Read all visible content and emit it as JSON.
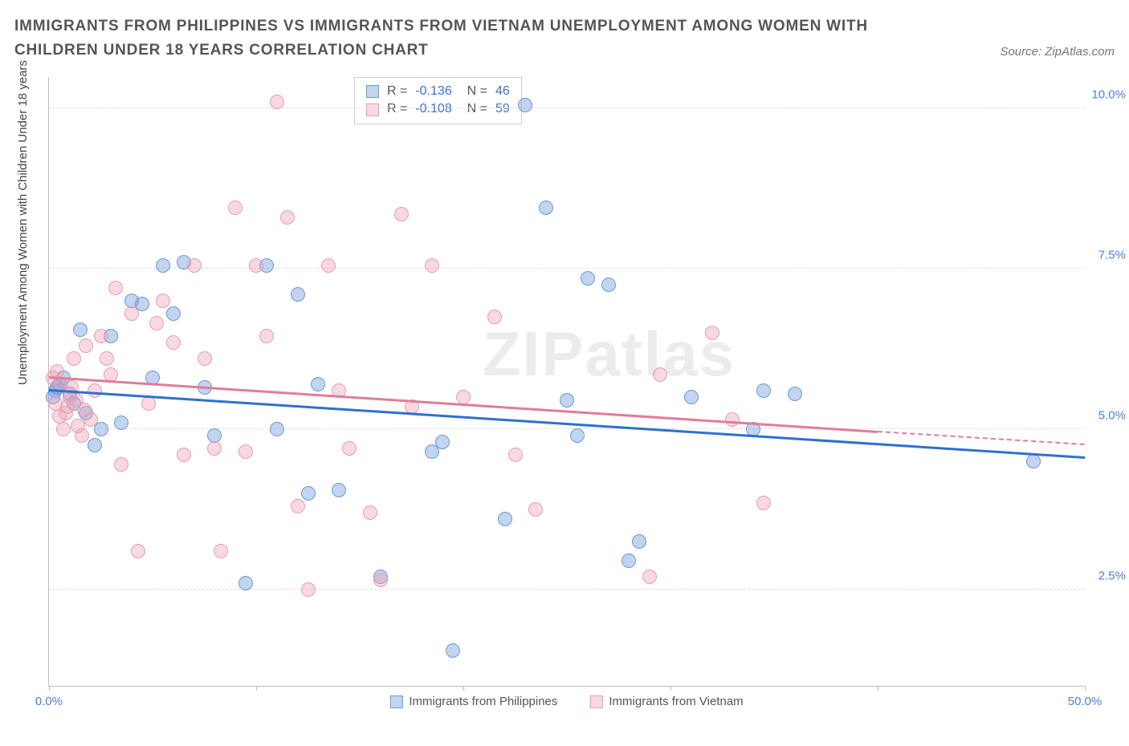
{
  "title": "IMMIGRANTS FROM PHILIPPINES VS IMMIGRANTS FROM VIETNAM UNEMPLOYMENT AMONG WOMEN WITH CHILDREN UNDER 18 YEARS CORRELATION CHART",
  "source_label": "Source: ZipAtlas.com",
  "watermark": "ZIPatlas",
  "ylabel": "Unemployment Among Women with Children Under 18 years",
  "x_range": [
    0,
    50
  ],
  "y_range": [
    1.0,
    10.5
  ],
  "x_ticks": [
    0,
    10,
    20,
    30,
    40,
    50
  ],
  "x_tick_labels": {
    "0": "0.0%",
    "50": "50.0%"
  },
  "y_gridlines": [
    2.5,
    5.0,
    7.5,
    10.0
  ],
  "y_tick_labels": [
    "2.5%",
    "5.0%",
    "7.5%",
    "10.0%"
  ],
  "colors": {
    "blue_fill": "rgba(120,160,220,0.45)",
    "blue_stroke": "#6a9ad6",
    "pink_fill": "rgba(240,160,180,0.40)",
    "pink_stroke": "#e49eb0",
    "blue_line": "#2f6fd0",
    "pink_line": "#e07d98",
    "axis_text": "#4a7fd6",
    "grid": "#dddddd"
  },
  "marker_radius": 9,
  "series": [
    {
      "name": "Immigrants from Philippines",
      "color_key": "blue",
      "R": "-0.136",
      "N": "46",
      "trend": {
        "x1": 0,
        "y1": 5.6,
        "x2": 50,
        "y2": 4.55
      },
      "points": [
        [
          0.3,
          5.6
        ],
        [
          0.5,
          5.7
        ],
        [
          0.7,
          5.8
        ],
        [
          1.0,
          5.55
        ],
        [
          1.2,
          5.4
        ],
        [
          1.5,
          6.55
        ],
        [
          1.8,
          5.25
        ],
        [
          2.2,
          4.75
        ],
        [
          2.5,
          5.0
        ],
        [
          3.0,
          6.45
        ],
        [
          3.5,
          5.1
        ],
        [
          4.0,
          7.0
        ],
        [
          4.5,
          6.95
        ],
        [
          5.0,
          5.8
        ],
        [
          5.5,
          7.55
        ],
        [
          6.0,
          6.8
        ],
        [
          6.5,
          7.6
        ],
        [
          7.5,
          5.65
        ],
        [
          8.0,
          4.9
        ],
        [
          9.5,
          2.6
        ],
        [
          10.5,
          7.55
        ],
        [
          11.0,
          5.0
        ],
        [
          12.0,
          7.1
        ],
        [
          12.5,
          4.0
        ],
        [
          13.0,
          5.7
        ],
        [
          14.0,
          4.05
        ],
        [
          16.0,
          2.7
        ],
        [
          18.5,
          4.65
        ],
        [
          19.0,
          4.8
        ],
        [
          22.0,
          3.6
        ],
        [
          23.0,
          10.05
        ],
        [
          24.0,
          8.45
        ],
        [
          25.0,
          5.45
        ],
        [
          25.5,
          4.9
        ],
        [
          26.0,
          7.35
        ],
        [
          27.0,
          7.25
        ],
        [
          28.0,
          2.95
        ],
        [
          28.5,
          3.25
        ],
        [
          31.0,
          5.5
        ],
        [
          34.0,
          5.0
        ],
        [
          34.5,
          5.6
        ],
        [
          36.0,
          5.55
        ],
        [
          47.5,
          4.5
        ],
        [
          19.5,
          1.55
        ],
        [
          0.2,
          5.5
        ],
        [
          0.4,
          5.65
        ]
      ]
    },
    {
      "name": "Immigrants from Vietnam",
      "color_key": "pink",
      "R": "-0.108",
      "N": "59",
      "trend_solid": {
        "x1": 0,
        "y1": 5.8,
        "x2": 40,
        "y2": 4.95
      },
      "trend_dash": {
        "x1": 40,
        "y1": 4.95,
        "x2": 50,
        "y2": 4.75
      },
      "points": [
        [
          0.2,
          5.8
        ],
        [
          0.4,
          5.9
        ],
        [
          0.6,
          5.7
        ],
        [
          0.8,
          5.25
        ],
        [
          1.0,
          5.5
        ],
        [
          1.2,
          6.1
        ],
        [
          1.4,
          5.05
        ],
        [
          1.6,
          4.9
        ],
        [
          1.8,
          6.3
        ],
        [
          2.0,
          5.15
        ],
        [
          2.2,
          5.6
        ],
        [
          2.5,
          6.45
        ],
        [
          2.8,
          6.1
        ],
        [
          3.0,
          5.85
        ],
        [
          3.2,
          7.2
        ],
        [
          3.5,
          4.45
        ],
        [
          4.0,
          6.8
        ],
        [
          4.3,
          3.1
        ],
        [
          4.8,
          5.4
        ],
        [
          5.2,
          6.65
        ],
        [
          5.5,
          7.0
        ],
        [
          6.0,
          6.35
        ],
        [
          6.5,
          4.6
        ],
        [
          7.0,
          7.55
        ],
        [
          7.5,
          6.1
        ],
        [
          8.0,
          4.7
        ],
        [
          8.3,
          3.1
        ],
        [
          9.0,
          8.45
        ],
        [
          9.5,
          4.65
        ],
        [
          10.0,
          7.55
        ],
        [
          10.5,
          6.45
        ],
        [
          11.0,
          10.1
        ],
        [
          11.5,
          8.3
        ],
        [
          12.0,
          3.8
        ],
        [
          12.5,
          2.5
        ],
        [
          13.5,
          7.55
        ],
        [
          14.0,
          5.6
        ],
        [
          14.5,
          4.7
        ],
        [
          15.5,
          3.7
        ],
        [
          16.0,
          2.65
        ],
        [
          17.0,
          8.35
        ],
        [
          17.5,
          5.35
        ],
        [
          18.5,
          7.55
        ],
        [
          20.0,
          5.5
        ],
        [
          21.5,
          6.75
        ],
        [
          22.5,
          4.6
        ],
        [
          23.5,
          3.75
        ],
        [
          29.0,
          2.7
        ],
        [
          29.5,
          5.85
        ],
        [
          32.0,
          6.5
        ],
        [
          33.0,
          5.15
        ],
        [
          34.5,
          3.85
        ],
        [
          0.3,
          5.4
        ],
        [
          0.5,
          5.2
        ],
        [
          0.7,
          5.0
        ],
        [
          0.9,
          5.35
        ],
        [
          1.1,
          5.65
        ],
        [
          1.3,
          5.45
        ],
        [
          1.7,
          5.3
        ]
      ]
    }
  ],
  "legend_bottom": [
    {
      "swatch": "blue",
      "label": "Immigrants from Philippines"
    },
    {
      "swatch": "pink",
      "label": "Immigrants from Vietnam"
    }
  ]
}
